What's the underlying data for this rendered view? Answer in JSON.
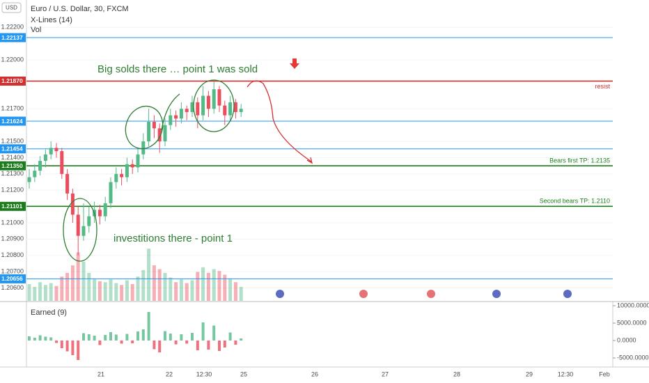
{
  "chart_data": {
    "type": "candlestick",
    "title": "Euro / U.S. Dollar, 30, FXCM",
    "indicators": [
      "X-Lines (14)",
      "Vol"
    ],
    "currency": "USD",
    "up_color": "#53b987",
    "down_color": "#eb4d5c",
    "ylim": [
      1.20521,
      1.22368
    ],
    "yticks": [
      {
        "value": 1.222,
        "label": "1.22200"
      },
      {
        "value": 1.22,
        "label": "1.22000"
      },
      {
        "value": 1.217,
        "label": "1.21700"
      },
      {
        "value": 1.215,
        "label": "1.21500"
      },
      {
        "value": 1.214,
        "label": "1.21400"
      },
      {
        "value": 1.213,
        "label": "1.21300"
      },
      {
        "value": 1.212,
        "label": "1.21200"
      },
      {
        "value": 1.21,
        "label": "1.21000"
      },
      {
        "value": 1.209,
        "label": "1.20900"
      },
      {
        "value": 1.208,
        "label": "1.20800"
      },
      {
        "value": 1.207,
        "label": "1.20700"
      },
      {
        "value": 1.206,
        "label": "1.20600"
      }
    ],
    "levels": [
      {
        "value": 1.22137,
        "label": "1.22137",
        "color": "#2196f3"
      },
      {
        "value": 1.2187,
        "label": "1.21870",
        "color": "#d32f2f",
        "note": "resist"
      },
      {
        "value": 1.21624,
        "label": "1.21624",
        "color": "#2196f3"
      },
      {
        "value": 1.21454,
        "label": "1.21454",
        "color": "#2196f3"
      },
      {
        "value": 1.2135,
        "label": "1.21350",
        "color": "#1b7d1b",
        "note": "Bears first TP: 1.2135"
      },
      {
        "value": 1.21101,
        "label": "1.21101",
        "color": "#1b7d1b",
        "note": "Second bears TP: 1.2110"
      },
      {
        "value": 1.20656,
        "label": "1.20656",
        "color": "#2196f3"
      }
    ],
    "annotations": [
      "Big solds there … point 1 was sold",
      "investitions there - point 1"
    ],
    "time_labels": [
      "21",
      "22",
      "12:30",
      "25",
      "26",
      "27",
      "28",
      "29",
      "12:30",
      "Feb"
    ],
    "candles": [
      [
        1.2125,
        1.2133,
        1.2121,
        1.2128,
        180,
        1200
      ],
      [
        1.2128,
        1.2136,
        1.2125,
        1.2132,
        150,
        800
      ],
      [
        1.2132,
        1.2141,
        1.2129,
        1.2138,
        200,
        1500
      ],
      [
        1.2138,
        1.2145,
        1.2134,
        1.2142,
        170,
        1100
      ],
      [
        1.2142,
        1.215,
        1.2139,
        1.2146,
        190,
        900
      ],
      [
        1.2146,
        1.2149,
        1.214,
        1.2144,
        160,
        -700
      ],
      [
        1.2144,
        1.2146,
        1.2127,
        1.213,
        260,
        -2200
      ],
      [
        1.213,
        1.2133,
        1.2114,
        1.2118,
        300,
        -3100
      ],
      [
        1.2118,
        1.2121,
        1.21,
        1.2105,
        380,
        -4200
      ],
      [
        1.2105,
        1.211,
        1.208,
        1.2092,
        520,
        -5600
      ],
      [
        1.2092,
        1.2112,
        1.2089,
        1.2098,
        420,
        2100
      ],
      [
        1.2098,
        1.211,
        1.2094,
        1.2104,
        300,
        1800
      ],
      [
        1.2104,
        1.2113,
        1.21,
        1.2108,
        240,
        1400
      ],
      [
        1.2108,
        1.2111,
        1.2099,
        1.2104,
        210,
        -1300
      ],
      [
        1.2104,
        1.2116,
        1.2101,
        1.2112,
        200,
        1600
      ],
      [
        1.2112,
        1.2128,
        1.2109,
        1.2125,
        230,
        2400
      ],
      [
        1.2125,
        1.2134,
        1.2121,
        1.213,
        190,
        1700
      ],
      [
        1.213,
        1.2133,
        1.2123,
        1.2128,
        170,
        -900
      ],
      [
        1.2128,
        1.214,
        1.2125,
        1.2136,
        220,
        1900
      ],
      [
        1.2136,
        1.2139,
        1.213,
        1.2134,
        180,
        -800
      ],
      [
        1.2134,
        1.2146,
        1.2131,
        1.2142,
        260,
        2600
      ],
      [
        1.2142,
        1.2155,
        1.2139,
        1.215,
        330,
        3200
      ],
      [
        1.215,
        1.217,
        1.2147,
        1.2162,
        560,
        8200
      ],
      [
        1.2162,
        1.2166,
        1.2152,
        1.2158,
        380,
        -2500
      ],
      [
        1.2158,
        1.2161,
        1.2143,
        1.215,
        340,
        -3400
      ],
      [
        1.215,
        1.2164,
        1.2147,
        1.216,
        300,
        2700
      ],
      [
        1.216,
        1.217,
        1.2157,
        1.2166,
        250,
        2000
      ],
      [
        1.2166,
        1.2169,
        1.2159,
        1.2164,
        200,
        -1100
      ],
      [
        1.2164,
        1.2174,
        1.2161,
        1.217,
        230,
        1800
      ],
      [
        1.217,
        1.2172,
        1.2163,
        1.2168,
        190,
        -900
      ],
      [
        1.2168,
        1.2178,
        1.2165,
        1.2174,
        220,
        2200
      ],
      [
        1.2174,
        1.2177,
        1.2158,
        1.2166,
        310,
        -2800
      ],
      [
        1.2166,
        1.2184,
        1.2163,
        1.2178,
        360,
        5200
      ],
      [
        1.2178,
        1.2181,
        1.2165,
        1.217,
        300,
        -2600
      ],
      [
        1.217,
        1.2187,
        1.2167,
        1.2182,
        340,
        4300
      ],
      [
        1.2182,
        1.2184,
        1.2168,
        1.2172,
        320,
        -3000
      ],
      [
        1.2172,
        1.2175,
        1.216,
        1.2166,
        280,
        -2000
      ],
      [
        1.2166,
        1.2178,
        1.2163,
        1.2174,
        240,
        2300
      ],
      [
        1.2174,
        1.2176,
        1.2164,
        1.2168,
        200,
        -1200
      ],
      [
        1.2168,
        1.2173,
        1.2165,
        1.217,
        150,
        600
      ]
    ],
    "earned": {
      "title": "Earned (9)",
      "ylim": [
        -7600,
        10400
      ],
      "yticks": [
        {
          "value": 10000,
          "label": "10000.0000"
        },
        {
          "value": 5000,
          "label": "5000.0000"
        },
        {
          "value": 0,
          "label": "0.0000"
        },
        {
          "value": -5000,
          "label": "-5000.0000"
        }
      ]
    }
  }
}
